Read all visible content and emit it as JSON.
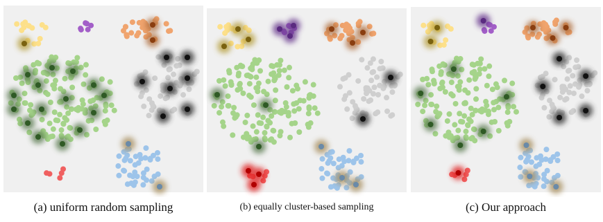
{
  "panels": [
    {
      "caption": "(a) uniform random sampling"
    },
    {
      "caption": "(b) equally cluster-based sampling"
    },
    {
      "caption": "(c) Our approach"
    }
  ]
}
